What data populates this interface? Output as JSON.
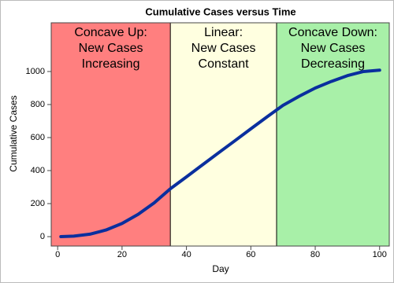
{
  "chart_data": {
    "type": "line",
    "title": "Cumulative Cases versus Time",
    "x_label": "Day",
    "y_label": "Cumulative Cases",
    "xlim": [
      -2,
      103
    ],
    "ylim": [
      -57,
      1295
    ],
    "xticks": [
      0,
      20,
      40,
      60,
      80,
      100
    ],
    "yticks": [
      0,
      200,
      400,
      600,
      800,
      1000
    ],
    "regions": [
      {
        "start": -2,
        "end": 35,
        "color": "#ff7f7f",
        "label": [
          "Concave Up:",
          "New Cases",
          "Increasing"
        ]
      },
      {
        "start": 35,
        "end": 68,
        "color": "#ffffe0",
        "label": [
          "Linear:",
          "New Cases",
          "Constant"
        ]
      },
      {
        "start": 68,
        "end": 103,
        "color": "#a8f0a8",
        "label": [
          "Concave Down:",
          "New Cases",
          "Decreasing"
        ]
      }
    ],
    "x": [
      1,
      5,
      10,
      15,
      20,
      25,
      30,
      35,
      40,
      45,
      50,
      55,
      60,
      65,
      68,
      70,
      75,
      80,
      85,
      90,
      95,
      100
    ],
    "series": [
      {
        "color": "#0a2f9e",
        "values": [
          0,
          3,
          15,
          40,
          80,
          135,
          205,
          290,
          362,
          435,
          508,
          580,
          653,
          725,
          767,
          795,
          850,
          900,
          940,
          975,
          1000,
          1008
        ]
      }
    ]
  }
}
